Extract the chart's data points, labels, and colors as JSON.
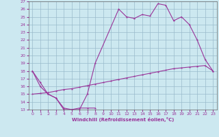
{
  "xlabel": "Windchill (Refroidissement éolien,°C)",
  "bg_color": "#cce8f0",
  "grid_color": "#99bbcc",
  "line_color": "#993399",
  "spine_color": "#666666",
  "xlim": [
    -0.5,
    23.5
  ],
  "ylim": [
    13,
    27
  ],
  "xticks": [
    0,
    1,
    2,
    3,
    4,
    5,
    6,
    7,
    8,
    9,
    10,
    11,
    12,
    13,
    14,
    15,
    16,
    17,
    18,
    19,
    20,
    21,
    22,
    23
  ],
  "yticks": [
    13,
    14,
    15,
    16,
    17,
    18,
    19,
    20,
    21,
    22,
    23,
    24,
    25,
    26,
    27
  ],
  "line1_x": [
    0,
    1,
    2,
    3,
    4,
    5,
    6,
    7,
    8,
    11,
    12,
    13,
    14,
    15,
    16,
    17,
    18,
    19,
    20,
    21,
    22,
    23
  ],
  "line1_y": [
    18,
    16.5,
    15,
    14.5,
    13,
    13,
    13,
    15,
    19,
    26,
    25,
    24.8,
    25.3,
    25.1,
    26.7,
    26.5,
    24.5,
    25,
    24,
    22,
    19.5,
    18
  ],
  "line2_x": [
    0,
    1,
    2,
    3,
    4,
    5,
    6,
    7,
    8
  ],
  "line2_y": [
    18,
    16,
    15,
    14.5,
    13.2,
    13,
    13.2,
    13.2,
    13.2
  ],
  "line3_x": [
    0,
    1,
    2,
    3,
    4,
    5,
    6,
    7,
    8,
    9,
    10,
    11,
    12,
    13,
    14,
    15,
    16,
    17,
    18,
    19,
    20,
    21,
    22,
    23
  ],
  "line3_y": [
    15,
    15.1,
    15.2,
    15.4,
    15.6,
    15.7,
    15.9,
    16.1,
    16.3,
    16.5,
    16.7,
    16.9,
    17.1,
    17.3,
    17.5,
    17.7,
    17.9,
    18.1,
    18.3,
    18.4,
    18.5,
    18.6,
    18.7,
    18.0
  ]
}
